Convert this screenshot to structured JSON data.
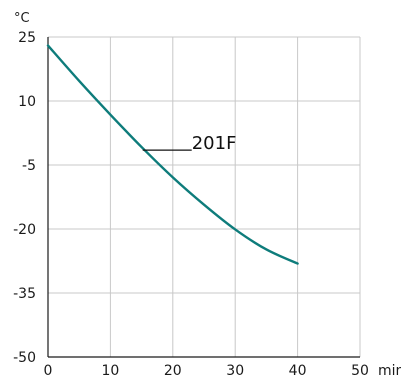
{
  "chart_data": {
    "type": "line",
    "y_unit": "°C",
    "x_unit": "min",
    "xlim": [
      0,
      50
    ],
    "ylim": [
      -50,
      25
    ],
    "x_ticks": [
      0,
      10,
      20,
      30,
      40,
      50
    ],
    "y_ticks": [
      25,
      10,
      -5,
      -20,
      -35,
      -50
    ],
    "grid": true,
    "series": [
      {
        "name": "201F",
        "color": "#0e7c7b",
        "x": [
          0,
          5,
          10,
          15,
          20,
          25,
          30,
          35,
          40
        ],
        "y": [
          23,
          14.7,
          6.8,
          -0.8,
          -7.9,
          -14.3,
          -20.1,
          -24.8,
          -28.1
        ]
      }
    ],
    "annotation": {
      "text": "201F",
      "point_x": 15.5
    }
  },
  "colors": {
    "grid": "#c8c8c8",
    "axis": "#1a1a1a",
    "line": "#0e7c7b"
  }
}
